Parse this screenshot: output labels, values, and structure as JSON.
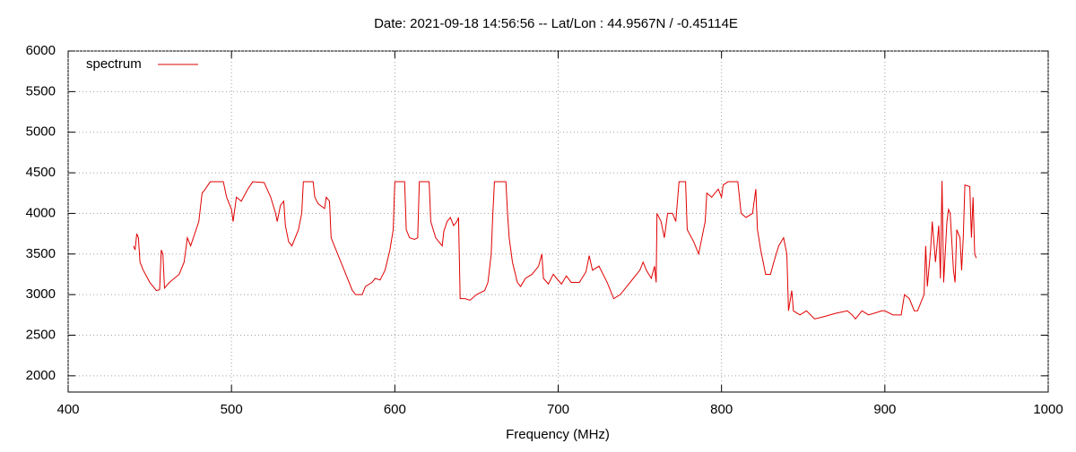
{
  "chart_data": {
    "type": "line",
    "title": "Date: 2021-09-18 14:56:56  --  Lat/Lon : 44.9567N / -0.45114E",
    "x_label": "Frequency (MHz)",
    "xlim": [
      400,
      1000
    ],
    "xticks": [
      400,
      500,
      600,
      700,
      800,
      900,
      1000
    ],
    "ylim": [
      1800,
      6000
    ],
    "yticks": [
      2000,
      2500,
      3000,
      3500,
      4000,
      4500,
      5000,
      5500,
      6000
    ],
    "grid": true,
    "legend": "top-left",
    "x": [
      440,
      441,
      442,
      443,
      444,
      446,
      450,
      454,
      456,
      457,
      458,
      459,
      462,
      468,
      471,
      473,
      475,
      480,
      482,
      484,
      487,
      495,
      497,
      500,
      501,
      503,
      506,
      510,
      513,
      520,
      524,
      527,
      528,
      530,
      532,
      533,
      535,
      537,
      541,
      543,
      544,
      550,
      551,
      553,
      557,
      558,
      560,
      561,
      565,
      570,
      574,
      576,
      580,
      582,
      586,
      588,
      591,
      594,
      597,
      599,
      600,
      606,
      607,
      609,
      612,
      614,
      615,
      621,
      622,
      625,
      629,
      630,
      632,
      634,
      636,
      638,
      639,
      640,
      643,
      646,
      650,
      655,
      657,
      659,
      660,
      661,
      668,
      669,
      670,
      672,
      675,
      677,
      680,
      684,
      686,
      688,
      690,
      691,
      694,
      697,
      699,
      702,
      705,
      708,
      713,
      717,
      719,
      721,
      725,
      730,
      734,
      738,
      742,
      746,
      750,
      752,
      754,
      757,
      759,
      760,
      760.5,
      763,
      765,
      767,
      770,
      772,
      774,
      778,
      779,
      783,
      786,
      790,
      791,
      794,
      798,
      800,
      801,
      804,
      810,
      812,
      815,
      819,
      821,
      822,
      824,
      827,
      830,
      832,
      835,
      838,
      840,
      841,
      843,
      844,
      848,
      852,
      857,
      863,
      870,
      877,
      880,
      882,
      886,
      890,
      895,
      898,
      900,
      905,
      910,
      912,
      915,
      918,
      920,
      922,
      924,
      925,
      926,
      928,
      929,
      931,
      933,
      934,
      935,
      936,
      938,
      939,
      940,
      942,
      943,
      944,
      946,
      947,
      948,
      949,
      952,
      953,
      954,
      955,
      956
    ],
    "series": [
      {
        "name": "spectrum",
        "color": "#e00000",
        "values": [
          3600,
          3550,
          3750,
          3700,
          3400,
          3300,
          3150,
          3050,
          3060,
          3550,
          3500,
          3080,
          3150,
          3250,
          3400,
          3700,
          3600,
          3900,
          4250,
          4300,
          4390,
          4390,
          4200,
          4050,
          3900,
          4200,
          4150,
          4300,
          4390,
          4380,
          4200,
          4000,
          3900,
          4100,
          4150,
          3850,
          3650,
          3600,
          3800,
          4000,
          4390,
          4390,
          4200,
          4120,
          4060,
          4200,
          4150,
          3700,
          3500,
          3250,
          3050,
          3000,
          3000,
          3100,
          3150,
          3200,
          3180,
          3300,
          3550,
          3800,
          4390,
          4390,
          3800,
          3700,
          3680,
          3700,
          4390,
          4390,
          3900,
          3700,
          3600,
          3780,
          3900,
          3950,
          3850,
          3900,
          3950,
          2950,
          2950,
          2930,
          3000,
          3050,
          3150,
          3500,
          4000,
          4390,
          4390,
          4000,
          3700,
          3400,
          3150,
          3100,
          3200,
          3250,
          3300,
          3350,
          3500,
          3200,
          3130,
          3250,
          3200,
          3130,
          3230,
          3150,
          3150,
          3280,
          3480,
          3300,
          3350,
          3150,
          2950,
          3000,
          3100,
          3200,
          3300,
          3400,
          3300,
          3200,
          3350,
          3150,
          4000,
          3900,
          3700,
          4000,
          4000,
          3900,
          4390,
          4390,
          3800,
          3650,
          3500,
          3900,
          4250,
          4200,
          4300,
          4200,
          4350,
          4390,
          4390,
          4000,
          3950,
          4000,
          4300,
          3800,
          3550,
          3250,
          3250,
          3400,
          3600,
          3700,
          3500,
          2800,
          3050,
          2800,
          2750,
          2800,
          2700,
          2730,
          2770,
          2800,
          2750,
          2700,
          2800,
          2750,
          2780,
          2800,
          2800,
          2750,
          2750,
          3000,
          2950,
          2800,
          2800,
          2900,
          3000,
          3600,
          3100,
          3550,
          3900,
          3400,
          3850,
          3200,
          4400,
          3150,
          3900,
          4050,
          4000,
          3300,
          3150,
          3800,
          3700,
          3300,
          3700,
          4350,
          4330,
          3700,
          4200,
          3500,
          3450
        ]
      }
    ]
  }
}
